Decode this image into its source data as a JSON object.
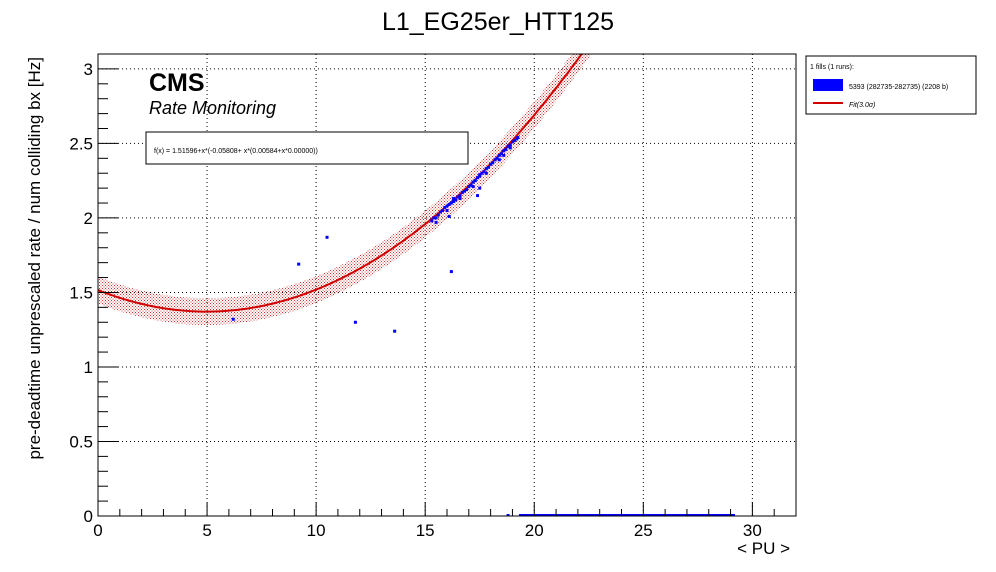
{
  "chart_data": {
    "type": "scatter",
    "title": "L1_EG25er_HTT125",
    "xlabel": "< PU >",
    "ylabel": "pre-deadtime unprescaled rate / num colliding bx [Hz]",
    "xlim": [
      0,
      32
    ],
    "ylim": [
      0,
      3.1
    ],
    "x_ticks": [
      0,
      5,
      10,
      15,
      20,
      25,
      30
    ],
    "x_tick_labels": [
      "0",
      "5",
      "10",
      "15",
      "20",
      "25",
      "30"
    ],
    "y_ticks": [
      0,
      0.5,
      1,
      1.5,
      2,
      2.5,
      3
    ],
    "y_tick_labels": [
      "0",
      "0.5",
      "1",
      "1.5",
      "2",
      "2.5",
      "3"
    ],
    "grid": true,
    "annotations": {
      "experiment": "CMS",
      "subtitle": "Rate Monitoring",
      "fit_formula": "f(x) = 1.51596+x*(-0.05808+ x*(0.00584+x*0.00000))"
    },
    "legend": {
      "position": "right",
      "header": "1 fills (1 runs):",
      "entries": [
        {
          "label": "5393 (282735-282735) (2208 b)",
          "color": "#0000ff",
          "kind": "box"
        },
        {
          "label": "Fit(3.0σ)",
          "color": "#d00000",
          "kind": "line"
        }
      ]
    },
    "fit": {
      "coefficients": [
        1.51596,
        -0.05808,
        0.00584,
        0.0
      ],
      "x_range": [
        0,
        32
      ],
      "band_sigma": 3.0,
      "band_halfwidth": 0.09,
      "line_color": "#d00000",
      "band_color": "#cc3333"
    },
    "series": [
      {
        "name": "5393 (282735-282735) (2208 b)",
        "color": "#0000ff",
        "points": [
          [
            6.2,
            1.32
          ],
          [
            9.2,
            1.69
          ],
          [
            10.5,
            1.87
          ],
          [
            11.8,
            1.3
          ],
          [
            13.6,
            1.24
          ],
          [
            16.2,
            1.64
          ],
          [
            16.1,
            2.01
          ],
          [
            17.4,
            2.15
          ],
          [
            17.5,
            2.2
          ],
          [
            15.3,
            1.98
          ],
          [
            15.4,
            2.0
          ],
          [
            15.5,
            2.0
          ],
          [
            15.6,
            2.02
          ],
          [
            15.7,
            2.04
          ],
          [
            15.8,
            2.05
          ],
          [
            15.9,
            2.07
          ],
          [
            16.0,
            2.08
          ],
          [
            16.1,
            2.09
          ],
          [
            16.2,
            2.1
          ],
          [
            16.3,
            2.11
          ],
          [
            16.4,
            2.12
          ],
          [
            16.5,
            2.14
          ],
          [
            16.6,
            2.15
          ],
          [
            16.7,
            2.17
          ],
          [
            16.8,
            2.18
          ],
          [
            16.9,
            2.19
          ],
          [
            17.0,
            2.21
          ],
          [
            17.1,
            2.22
          ],
          [
            17.2,
            2.24
          ],
          [
            17.3,
            2.25
          ],
          [
            17.4,
            2.27
          ],
          [
            17.5,
            2.28
          ],
          [
            17.6,
            2.3
          ],
          [
            17.7,
            2.31
          ],
          [
            17.8,
            2.33
          ],
          [
            17.9,
            2.34
          ],
          [
            18.0,
            2.36
          ],
          [
            18.1,
            2.37
          ],
          [
            18.2,
            2.39
          ],
          [
            18.3,
            2.4
          ],
          [
            18.4,
            2.42
          ],
          [
            18.5,
            2.43
          ],
          [
            18.6,
            2.45
          ],
          [
            18.7,
            2.46
          ],
          [
            18.8,
            2.48
          ],
          [
            18.9,
            2.49
          ],
          [
            19.0,
            2.51
          ],
          [
            19.1,
            2.52
          ],
          [
            19.2,
            2.53
          ],
          [
            19.25,
            2.54
          ],
          [
            15.5,
            1.97
          ],
          [
            16.0,
            2.05
          ],
          [
            16.6,
            2.13
          ],
          [
            17.2,
            2.21
          ],
          [
            17.8,
            2.3
          ],
          [
            18.4,
            2.39
          ],
          [
            18.9,
            2.47
          ],
          [
            17.5,
            2.29
          ],
          [
            16.3,
            2.13
          ],
          [
            18.6,
            2.42
          ]
        ],
        "zero_rate_segment": {
          "x_start": 19.3,
          "x_end": 29.2,
          "y": 0
        },
        "isolated_zero_points": [
          [
            18.8,
            0
          ]
        ]
      }
    ]
  }
}
